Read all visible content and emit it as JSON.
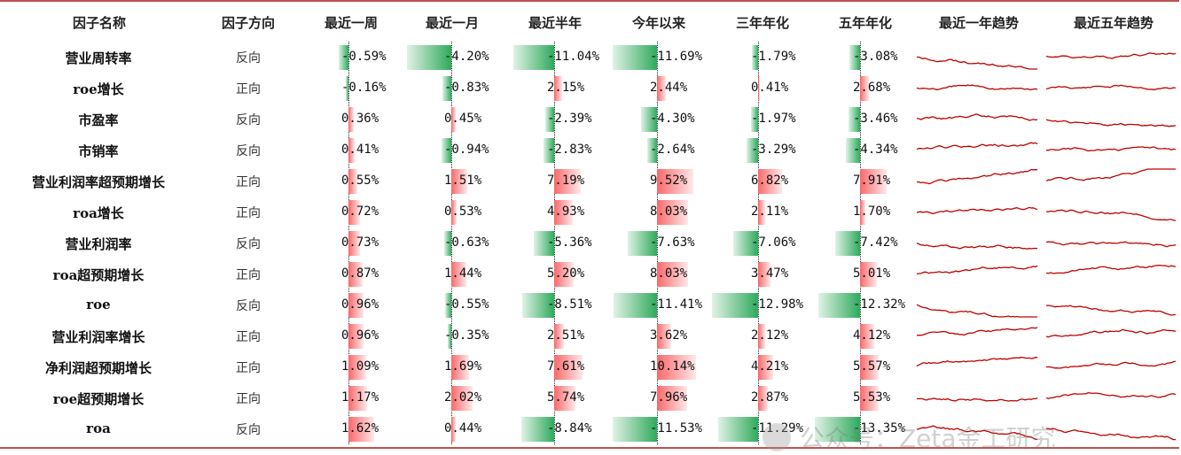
{
  "chart_data": {
    "type": "table",
    "columns": [
      "因子名称",
      "因子方向",
      "最近一周",
      "最近一月",
      "最近半年",
      "今年以来",
      "三年年化",
      "五年年化",
      "最近一年趋势",
      "最近五年趋势"
    ],
    "rows": [
      {
        "name": "营业周转率",
        "direction": "反向",
        "values": [
          "-0.59%",
          "-4.20%",
          "-11.04%",
          "-11.69%",
          "-1.79%",
          "-3.08%"
        ],
        "nums": [
          -0.59,
          -4.2,
          -11.04,
          -11.69,
          -1.79,
          -3.08
        ]
      },
      {
        "name": "roe增长",
        "direction": "正向",
        "values": [
          "-0.16%",
          "-0.83%",
          "2.15%",
          "2.44%",
          "0.41%",
          "2.68%"
        ],
        "nums": [
          -0.16,
          -0.83,
          2.15,
          2.44,
          0.41,
          2.68
        ]
      },
      {
        "name": "市盈率",
        "direction": "反向",
        "values": [
          "0.36%",
          "0.45%",
          "-2.39%",
          "-4.30%",
          "-1.97%",
          "-3.46%"
        ],
        "nums": [
          0.36,
          0.45,
          -2.39,
          -4.3,
          -1.97,
          -3.46
        ]
      },
      {
        "name": "市销率",
        "direction": "反向",
        "values": [
          "0.41%",
          "-0.94%",
          "-2.83%",
          "-2.64%",
          "-3.29%",
          "-4.34%"
        ],
        "nums": [
          0.41,
          -0.94,
          -2.83,
          -2.64,
          -3.29,
          -4.34
        ]
      },
      {
        "name": "营业利润率超预期增长",
        "direction": "正向",
        "values": [
          "0.55%",
          "1.51%",
          "7.19%",
          "9.52%",
          "6.82%",
          "7.91%"
        ],
        "nums": [
          0.55,
          1.51,
          7.19,
          9.52,
          6.82,
          7.91
        ]
      },
      {
        "name": "roa增长",
        "direction": "正向",
        "values": [
          "0.72%",
          "0.53%",
          "4.93%",
          "8.03%",
          "2.11%",
          "1.70%"
        ],
        "nums": [
          0.72,
          0.53,
          4.93,
          8.03,
          2.11,
          1.7
        ]
      },
      {
        "name": "营业利润率",
        "direction": "反向",
        "values": [
          "0.73%",
          "-0.63%",
          "-5.36%",
          "-7.63%",
          "-7.06%",
          "-7.42%"
        ],
        "nums": [
          0.73,
          -0.63,
          -5.36,
          -7.63,
          -7.06,
          -7.42
        ]
      },
      {
        "name": "roa超预期增长",
        "direction": "正向",
        "values": [
          "0.87%",
          "1.44%",
          "5.20%",
          "8.03%",
          "3.47%",
          "5.01%"
        ],
        "nums": [
          0.87,
          1.44,
          5.2,
          8.03,
          3.47,
          5.01
        ]
      },
      {
        "name": "roe",
        "direction": "反向",
        "values": [
          "0.96%",
          "-0.55%",
          "-8.51%",
          "-11.41%",
          "-12.98%",
          "-12.32%"
        ],
        "nums": [
          0.96,
          -0.55,
          -8.51,
          -11.41,
          -12.98,
          -12.32
        ]
      },
      {
        "name": "营业利润率增长",
        "direction": "正向",
        "values": [
          "0.96%",
          "-0.35%",
          "2.51%",
          "3.62%",
          "2.12%",
          "4.12%"
        ],
        "nums": [
          0.96,
          -0.35,
          2.51,
          3.62,
          2.12,
          4.12
        ]
      },
      {
        "name": "净利润超预期增长",
        "direction": "正向",
        "values": [
          "1.09%",
          "1.69%",
          "7.61%",
          "10.14%",
          "4.21%",
          "5.57%"
        ],
        "nums": [
          1.09,
          1.69,
          7.61,
          10.14,
          4.21,
          5.57
        ]
      },
      {
        "name": "roe超预期增长",
        "direction": "正向",
        "values": [
          "1.17%",
          "2.02%",
          "5.74%",
          "7.96%",
          "2.87%",
          "5.53%"
        ],
        "nums": [
          1.17,
          2.02,
          5.74,
          7.96,
          2.87,
          5.53
        ]
      },
      {
        "name": "roa",
        "direction": "反向",
        "values": [
          "1.62%",
          "0.44%",
          "-8.84%",
          "-11.53%",
          "-11.29%",
          "-13.35%"
        ],
        "nums": [
          1.62,
          0.44,
          -8.84,
          -11.53,
          -11.29,
          -13.35
        ]
      }
    ]
  },
  "colors": {
    "positive": "#f8696b",
    "negative": "#2eaa5c",
    "sparkline": "#c00000",
    "rule": "#c0504d"
  },
  "watermark": "公众号：Zeta金工研究"
}
